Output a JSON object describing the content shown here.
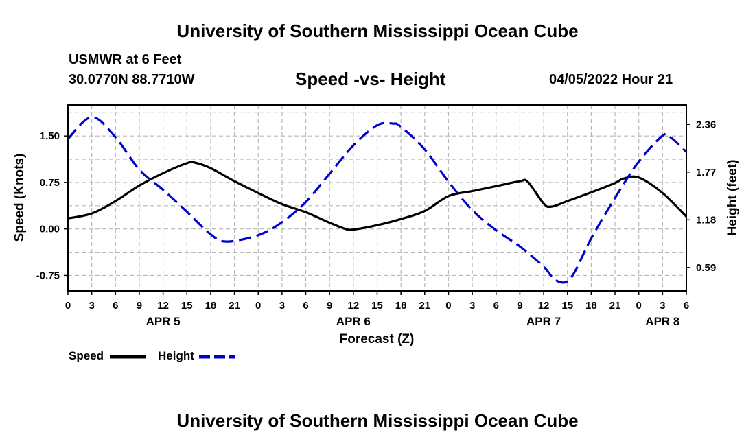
{
  "header": {
    "title": "University of Southern Mississippi Ocean Cube",
    "station": "USMWR at 6 Feet",
    "coordinates": "30.0770N  88.7710W",
    "subtitle": "Speed -vs- Height",
    "datetime": "04/05/2022 Hour 21"
  },
  "footer": {
    "title": "University of Southern Mississippi Ocean Cube"
  },
  "legend": {
    "speed_label": "Speed",
    "height_label": "Height"
  },
  "chart_data": {
    "type": "line",
    "title": "Speed -vs- Height",
    "xlabel": "Forecast (Z)",
    "ylabel_left": "Speed (Knots)",
    "ylabel_right": "Height (feet)",
    "x_hours_range": [
      0,
      78
    ],
    "x_ticks": [
      {
        "hour": 0,
        "label": "0"
      },
      {
        "hour": 3,
        "label": "3"
      },
      {
        "hour": 6,
        "label": "6"
      },
      {
        "hour": 9,
        "label": "9"
      },
      {
        "hour": 12,
        "label": "12"
      },
      {
        "hour": 15,
        "label": "15"
      },
      {
        "hour": 18,
        "label": "18"
      },
      {
        "hour": 21,
        "label": "21"
      },
      {
        "hour": 24,
        "label": "0"
      },
      {
        "hour": 27,
        "label": "3"
      },
      {
        "hour": 30,
        "label": "6"
      },
      {
        "hour": 33,
        "label": "9"
      },
      {
        "hour": 36,
        "label": "12"
      },
      {
        "hour": 39,
        "label": "15"
      },
      {
        "hour": 42,
        "label": "18"
      },
      {
        "hour": 45,
        "label": "21"
      },
      {
        "hour": 48,
        "label": "0"
      },
      {
        "hour": 51,
        "label": "3"
      },
      {
        "hour": 54,
        "label": "6"
      },
      {
        "hour": 57,
        "label": "9"
      },
      {
        "hour": 60,
        "label": "12"
      },
      {
        "hour": 63,
        "label": "15"
      },
      {
        "hour": 66,
        "label": "18"
      },
      {
        "hour": 69,
        "label": "21"
      },
      {
        "hour": 72,
        "label": "0"
      },
      {
        "hour": 75,
        "label": "3"
      },
      {
        "hour": 78,
        "label": "6"
      }
    ],
    "date_labels": [
      {
        "hour": 12,
        "label": "APR 5"
      },
      {
        "hour": 36,
        "label": "APR 6"
      },
      {
        "hour": 60,
        "label": "APR 7"
      },
      {
        "hour": 75,
        "label": "APR 8"
      }
    ],
    "left_axis": {
      "range": [
        -1.0,
        2.0
      ],
      "ticks": [
        {
          "v": 1.5,
          "label": "1.50"
        },
        {
          "v": 0.75,
          "label": "0.75"
        },
        {
          "v": 0.0,
          "label": "0.00"
        },
        {
          "v": -0.75,
          "label": "-0.75"
        }
      ]
    },
    "right_axis": {
      "range": [
        0.3,
        2.6
      ],
      "ticks": [
        {
          "v": 2.36,
          "label": "2.36"
        },
        {
          "v": 1.77,
          "label": "1.77"
        },
        {
          "v": 1.18,
          "label": "1.18"
        },
        {
          "v": 0.59,
          "label": "0.59"
        }
      ]
    },
    "grid": true,
    "series": [
      {
        "name": "Speed",
        "axis": "left",
        "color": "#000000",
        "dash": "solid",
        "points": [
          [
            0,
            0.17
          ],
          [
            3,
            0.25
          ],
          [
            6,
            0.45
          ],
          [
            9,
            0.7
          ],
          [
            12,
            0.9
          ],
          [
            15,
            1.06
          ],
          [
            16,
            1.07
          ],
          [
            18,
            0.98
          ],
          [
            21,
            0.77
          ],
          [
            24,
            0.58
          ],
          [
            27,
            0.4
          ],
          [
            30,
            0.27
          ],
          [
            33,
            0.1
          ],
          [
            35,
            0.0
          ],
          [
            36,
            -0.01
          ],
          [
            39,
            0.06
          ],
          [
            42,
            0.16
          ],
          [
            45,
            0.29
          ],
          [
            48,
            0.53
          ],
          [
            51,
            0.61
          ],
          [
            54,
            0.69
          ],
          [
            57,
            0.77
          ],
          [
            58,
            0.76
          ],
          [
            60,
            0.41
          ],
          [
            61,
            0.36
          ],
          [
            63,
            0.45
          ],
          [
            66,
            0.59
          ],
          [
            69,
            0.74
          ],
          [
            70,
            0.81
          ],
          [
            72,
            0.83
          ],
          [
            75,
            0.58
          ],
          [
            78,
            0.2
          ]
        ]
      },
      {
        "name": "Height",
        "axis": "right",
        "color": "#0000cc",
        "dash": "dashed",
        "points": [
          [
            0,
            2.18
          ],
          [
            3,
            2.45
          ],
          [
            6,
            2.2
          ],
          [
            9,
            1.8
          ],
          [
            12,
            1.55
          ],
          [
            15,
            1.28
          ],
          [
            18,
            1.0
          ],
          [
            20,
            0.91
          ],
          [
            24,
            0.99
          ],
          [
            27,
            1.15
          ],
          [
            30,
            1.4
          ],
          [
            33,
            1.75
          ],
          [
            36,
            2.1
          ],
          [
            39,
            2.35
          ],
          [
            41,
            2.37
          ],
          [
            42,
            2.33
          ],
          [
            45,
            2.05
          ],
          [
            48,
            1.65
          ],
          [
            51,
            1.3
          ],
          [
            54,
            1.05
          ],
          [
            57,
            0.85
          ],
          [
            60,
            0.6
          ],
          [
            61,
            0.48
          ],
          [
            62,
            0.41
          ],
          [
            63,
            0.42
          ],
          [
            64,
            0.55
          ],
          [
            66,
            0.95
          ],
          [
            69,
            1.45
          ],
          [
            72,
            1.9
          ],
          [
            75,
            2.22
          ],
          [
            76,
            2.2
          ],
          [
            78,
            2.02
          ]
        ]
      }
    ]
  }
}
